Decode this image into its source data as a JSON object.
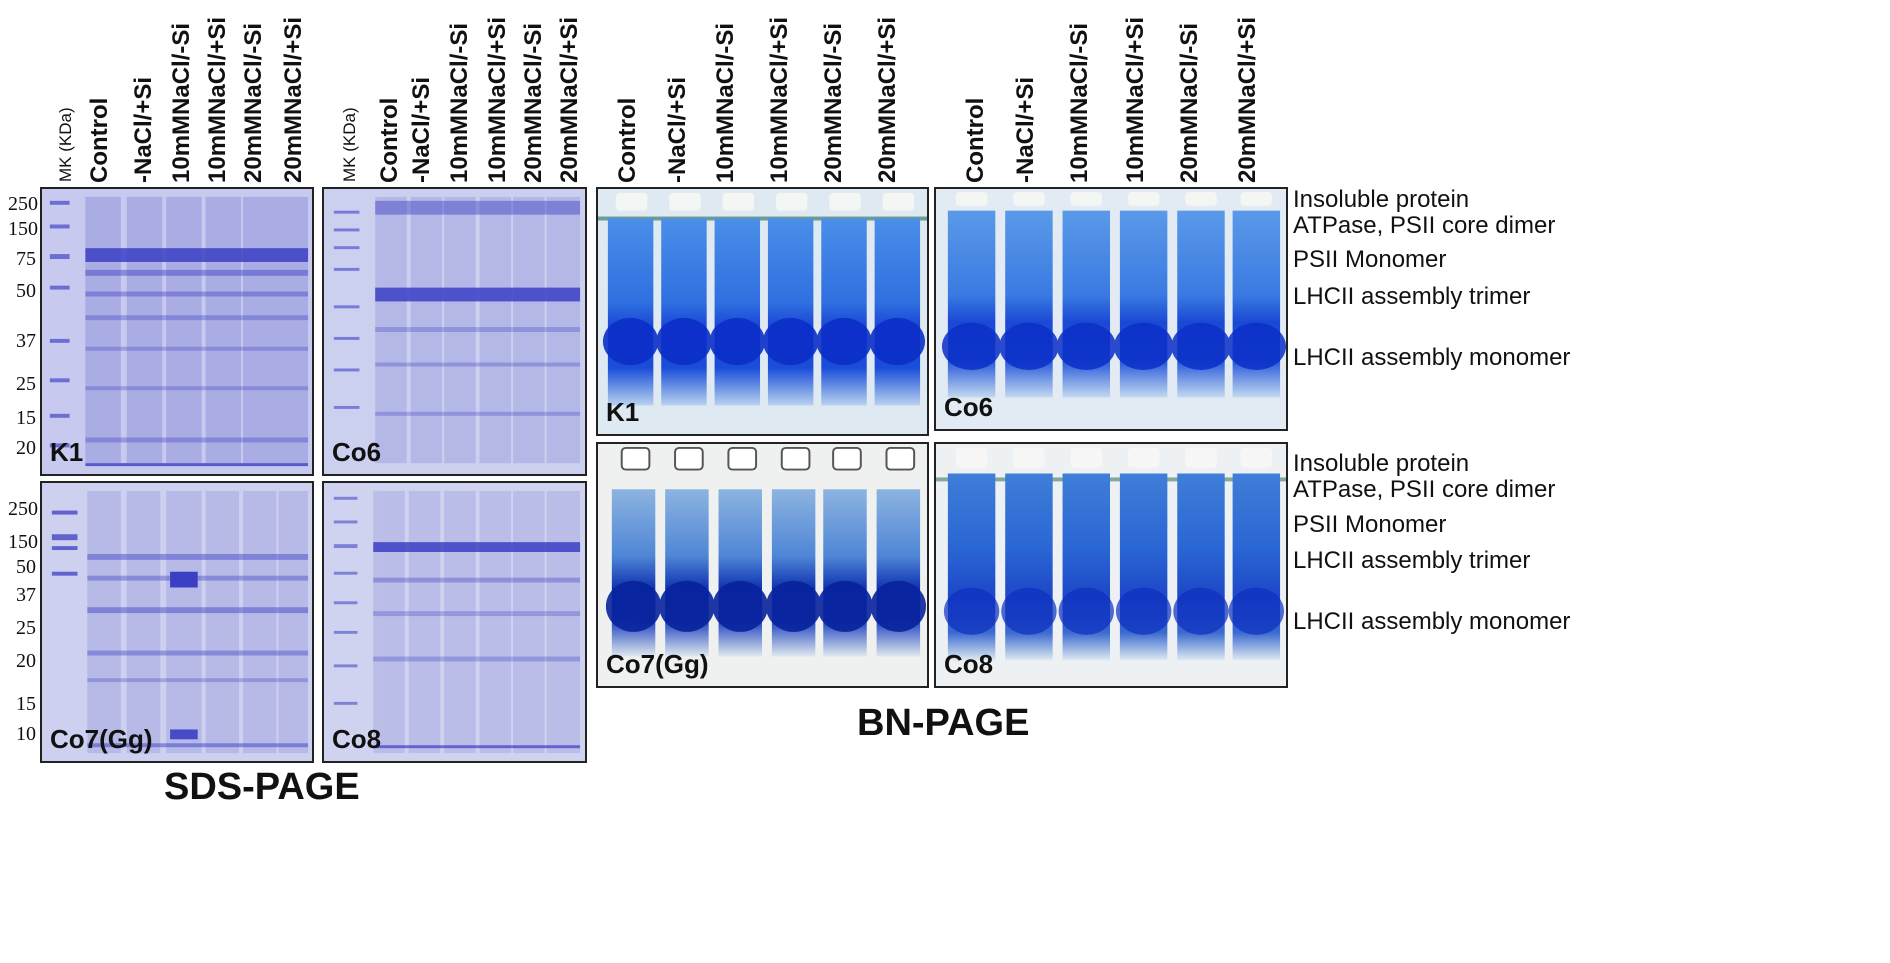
{
  "sds_lane_headers": {
    "marker": "MK (KDa)",
    "lanes": [
      "Control",
      "-NaCl/+Si",
      "10mMNaCl/-Si",
      "10mMNaCl/+Si",
      "20mMNaCl/-Si",
      "20mMNaCl/+Si"
    ]
  },
  "bn_lane_headers": {
    "lanes": [
      "Control",
      "-NaCl/+Si",
      "10mMNaCl/-Si",
      "10mMNaCl/+Si",
      "20mMNaCl/-Si",
      "20mMNaCl/+Si"
    ]
  },
  "sds_gels": {
    "k1": {
      "name": "K1",
      "markers": [
        "250",
        "150",
        "75",
        "50",
        "37",
        "25",
        "15",
        "20"
      ]
    },
    "co6": {
      "name": "Co6"
    },
    "co7": {
      "name": "Co7(Gg)",
      "markers": [
        "250",
        "150",
        "50",
        "37",
        "25",
        "20",
        "15",
        "10"
      ]
    },
    "co8": {
      "name": "Co8"
    }
  },
  "bn_gels": {
    "k1": {
      "name": "K1"
    },
    "co6": {
      "name": "Co6"
    },
    "co7": {
      "name": "Co7(Gg)"
    },
    "co8": {
      "name": "Co8"
    }
  },
  "bn_band_labels_top": [
    "Insoluble protein",
    "ATPase, PSII core dimer",
    "PSII Monomer",
    "LHCII assembly trimer",
    "LHCII assembly monomer"
  ],
  "bn_band_labels_bottom": [
    "Insoluble protein",
    "ATPase, PSII core dimer",
    "PSII Monomer",
    "LHCII assembly trimer",
    "LHCII assembly monomer"
  ],
  "titles": {
    "sds": "SDS-PAGE",
    "bn": "BN-PAGE"
  },
  "colors": {
    "sds_background": "#c9cbef",
    "sds_band": "#3b3fc4",
    "bn_background": "#dfe9f2",
    "bn_lane": "#2f6fe0",
    "bn_monomer": "#0b2fc8",
    "bn_top_slot": "#f4f6f4"
  }
}
